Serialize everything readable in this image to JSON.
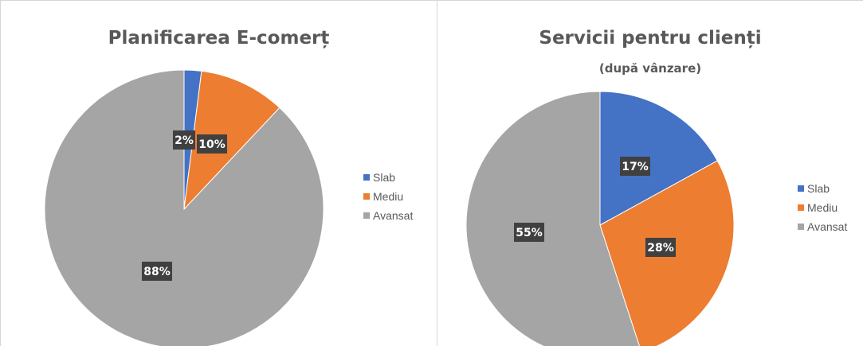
{
  "chart_data": [
    {
      "type": "pie",
      "title": "Planificarea  E-comerț",
      "subtitle": "",
      "categories": [
        "Slab",
        "Mediu",
        "Avansat"
      ],
      "values": [
        2,
        10,
        88
      ],
      "data_labels": [
        "2%",
        "10%",
        "88%"
      ],
      "colors": [
        "#4472c4",
        "#ed7d31",
        "#a5a5a5"
      ],
      "legend": "right"
    },
    {
      "type": "pie",
      "title": "Servicii pentru clienți",
      "subtitle": "(după vânzare)",
      "categories": [
        "Slab",
        "Mediu",
        "Avansat"
      ],
      "values": [
        17,
        28,
        55
      ],
      "data_labels": [
        "17%",
        "28%",
        "55%"
      ],
      "colors": [
        "#4472c4",
        "#ed7d31",
        "#a5a5a5"
      ],
      "legend": "right"
    }
  ]
}
